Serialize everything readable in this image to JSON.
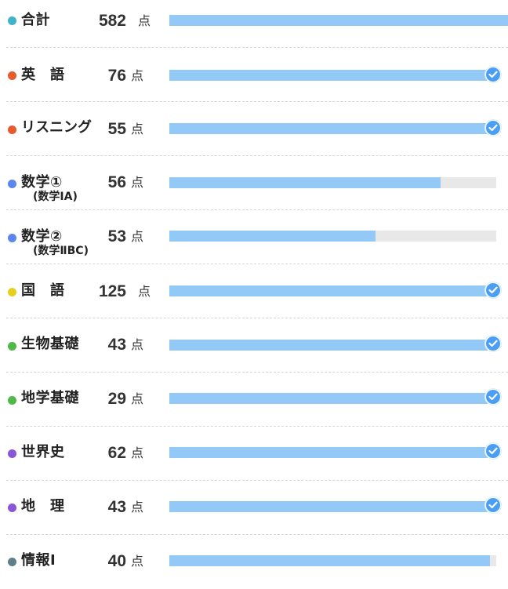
{
  "subjects": [
    {
      "label": "合計",
      "score": "582",
      "unit": "点",
      "dot_color": "#3fb3c8",
      "progress": 1.0,
      "complete": false
    },
    {
      "label": "英　語",
      "score": "76",
      "unit": "点",
      "dot_color": "#e65a2c",
      "progress": 1.0,
      "complete": true
    },
    {
      "label": "リスニング",
      "score": "55",
      "unit": "点",
      "dot_color": "#e65a2c",
      "progress": 1.0,
      "complete": true
    },
    {
      "label": "数学①",
      "sublabel": "(数学ⅠA)",
      "score": "56",
      "unit": "点",
      "dot_color": "#5a86ee",
      "progress": 0.83,
      "complete": false
    },
    {
      "label": "数学②",
      "sublabel": "(数学ⅡBC)",
      "score": "53",
      "unit": "点",
      "dot_color": "#5a86ee",
      "progress": 0.63,
      "complete": false
    },
    {
      "label": "国　語",
      "score": "125",
      "unit": "点",
      "dot_color": "#e6d01e",
      "progress": 1.0,
      "complete": true
    },
    {
      "label": "生物基礎",
      "score": "43",
      "unit": "点",
      "dot_color": "#4fb848",
      "progress": 1.0,
      "complete": true
    },
    {
      "label": "地学基礎",
      "score": "29",
      "unit": "点",
      "dot_color": "#4fb848",
      "progress": 1.0,
      "complete": true
    },
    {
      "label": "世界史",
      "score": "62",
      "unit": "点",
      "dot_color": "#8a55d8",
      "progress": 1.0,
      "complete": true
    },
    {
      "label": "地　理",
      "score": "43",
      "unit": "点",
      "dot_color": "#8a55d8",
      "progress": 1.0,
      "complete": true
    },
    {
      "label": "情報Ⅰ",
      "score": "40",
      "unit": "点",
      "dot_color": "#5e7f8a",
      "progress": 0.98,
      "complete": false
    }
  ],
  "colors": {
    "bar_fill": "#93c9f7",
    "bar_track": "#e8e8e8",
    "check": "#4a9ff5"
  }
}
